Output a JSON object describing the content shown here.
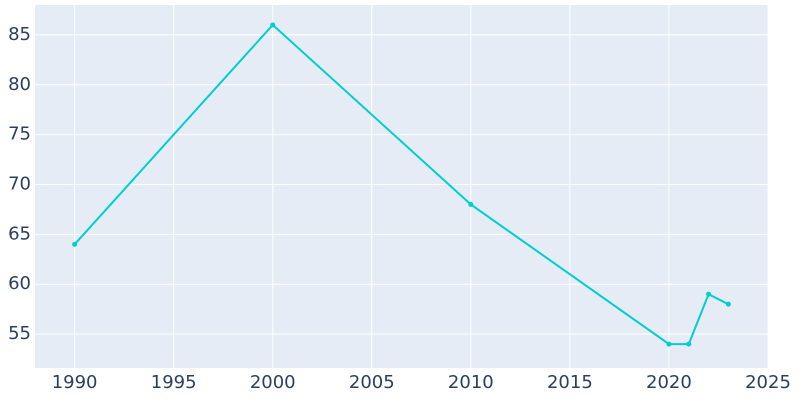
{
  "chart_data": {
    "type": "line",
    "x": [
      1990,
      2000,
      2010,
      2020,
      2021,
      2022,
      2023
    ],
    "series": [
      {
        "color": "#00ced1",
        "values": [
          64,
          86,
          68,
          54,
          54,
          59,
          58
        ]
      }
    ],
    "xlim": [
      1988,
      2025
    ],
    "xticks": [
      1990,
      1995,
      2000,
      2005,
      2010,
      2015,
      2020,
      2025
    ],
    "ylim": [
      51.6,
      88
    ],
    "yticks": [
      55,
      60,
      65,
      70,
      75,
      80,
      85
    ],
    "grid": true,
    "background": "#e5ecf6"
  }
}
